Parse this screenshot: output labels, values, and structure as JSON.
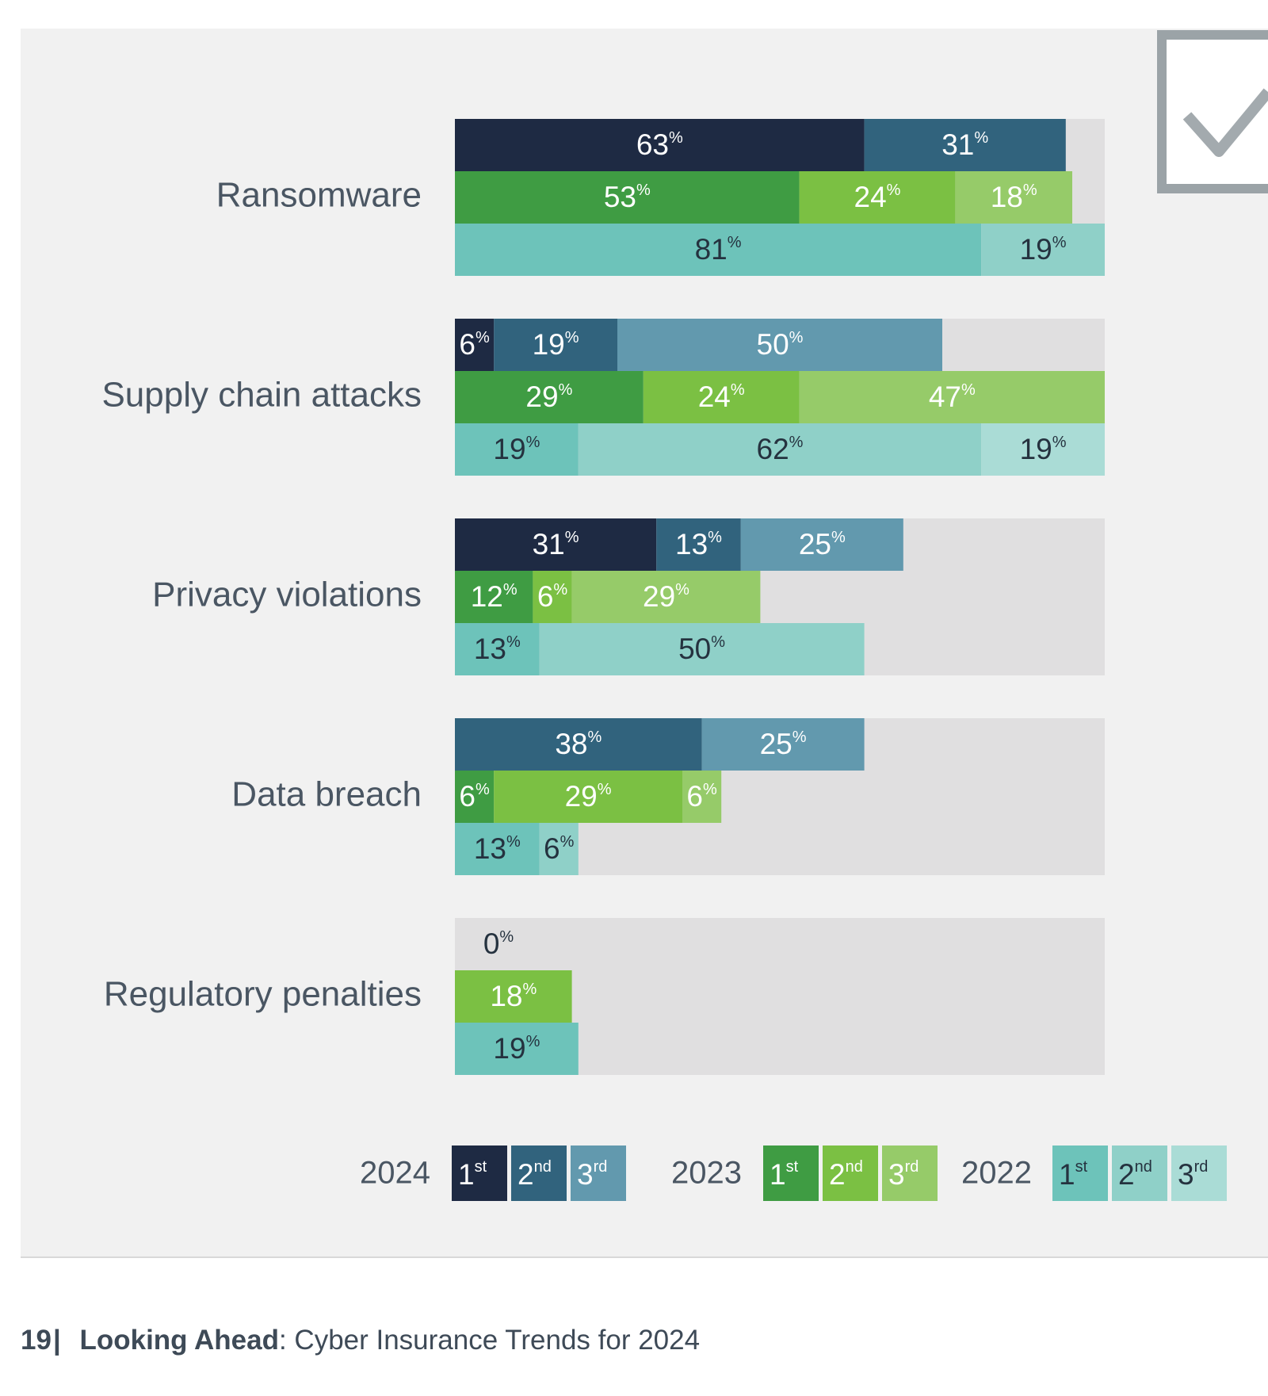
{
  "chart_data": {
    "type": "bar",
    "orientation": "horizontal",
    "stacked": true,
    "categories": [
      "Ransomware",
      "Supply chain attacks",
      "Privacy violations",
      "Data breach",
      "Regulatory penalties"
    ],
    "years": [
      {
        "year": "2024",
        "ranks": [
          "1st",
          "2nd",
          "3rd"
        ],
        "colors": [
          "#1e2a43",
          "#31637d",
          "#6299ae"
        ],
        "text_colors": [
          "#ffffff",
          "#ffffff",
          "#ffffff"
        ],
        "values": [
          [
            63,
            31,
            0
          ],
          [
            6,
            19,
            50
          ],
          [
            31,
            13,
            25
          ],
          [
            0,
            38,
            25
          ],
          [
            0,
            0,
            0
          ]
        ]
      },
      {
        "year": "2023",
        "ranks": [
          "1st",
          "2nd",
          "3rd"
        ],
        "colors": [
          "#3f9c43",
          "#7bc043",
          "#96cb69"
        ],
        "text_colors": [
          "#ffffff",
          "#ffffff",
          "#ffffff"
        ],
        "values": [
          [
            53,
            24,
            18
          ],
          [
            29,
            24,
            47
          ],
          [
            12,
            6,
            29
          ],
          [
            6,
            29,
            6
          ],
          [
            0,
            18,
            0
          ]
        ]
      },
      {
        "year": "2022",
        "ranks": [
          "1st",
          "2nd",
          "3rd"
        ],
        "colors": [
          "#6dc3ba",
          "#8fd0c8",
          "#aadcd6"
        ],
        "text_colors": [
          "#25323f",
          "#25323f",
          "#25323f"
        ],
        "values": [
          [
            81,
            19,
            0
          ],
          [
            19,
            62,
            19
          ],
          [
            13,
            50,
            0
          ],
          [
            13,
            6,
            0
          ],
          [
            19,
            0,
            0
          ]
        ]
      }
    ],
    "zero_labels": [
      {
        "category": "Regulatory penalties",
        "year": "2024",
        "label": "0"
      }
    ],
    "unit_suffix": "%",
    "xlim": [
      0,
      100
    ],
    "background_color": "#e0dfe0"
  },
  "footer": {
    "page_number": "19",
    "separator": "|",
    "lead": "Looking Ahead",
    "colon": ":",
    "title": " Cyber Insurance Trends for 2024"
  }
}
